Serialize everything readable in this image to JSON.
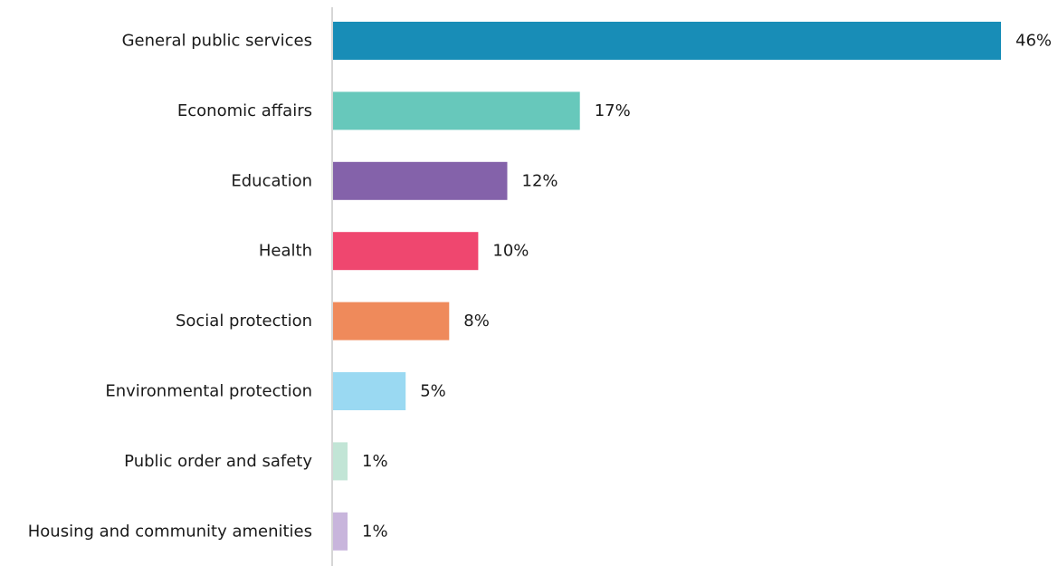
{
  "chart_data": {
    "type": "bar",
    "orientation": "horizontal",
    "categories": [
      "General public services",
      "Economic affairs",
      "Education",
      "Health",
      "Social protection",
      "Environmental protection",
      "Public order and safety",
      "Housing and community amenities"
    ],
    "values": [
      46,
      17,
      12,
      10,
      8,
      5,
      1,
      1
    ],
    "value_labels": [
      "46%",
      "17%",
      "12%",
      "10%",
      "8%",
      "5%",
      "1%",
      "1%"
    ],
    "colors": [
      "#188db7",
      "#67c8bb",
      "#8462aa",
      "#ef476f",
      "#ef8a5b",
      "#9ad9f2",
      "#c2e5d6",
      "#c8b5dc"
    ],
    "unit": "%",
    "xlim": [
      0,
      46
    ],
    "grid": false,
    "legend": "none"
  }
}
